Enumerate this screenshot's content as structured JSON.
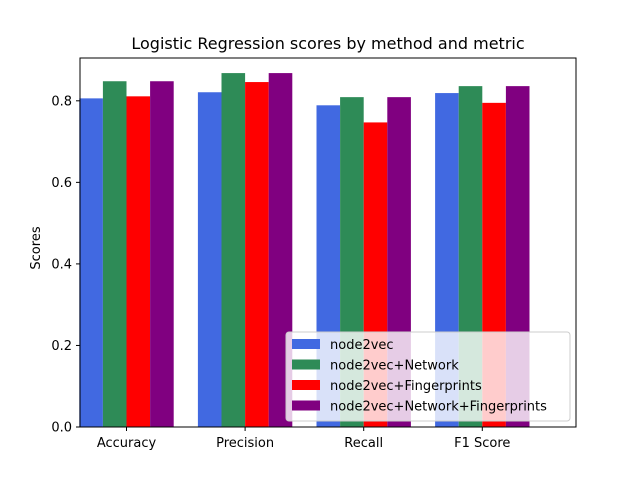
{
  "chart_data": {
    "type": "bar",
    "title": "Logistic Regression scores by method and metric",
    "xlabel": "",
    "ylabel": "Scores",
    "categories": [
      "Accuracy",
      "Precision",
      "Recall",
      "F1 Score"
    ],
    "ylim": [
      0,
      0.905
    ],
    "yticks": [
      0.0,
      0.2,
      0.4,
      0.6,
      0.8
    ],
    "ytick_labels": [
      "0.0",
      "0.2",
      "0.4",
      "0.6",
      "0.8"
    ],
    "grid": false,
    "legend_position": "lower right",
    "series": [
      {
        "name": "node2vec",
        "color": "#4169e1",
        "values": [
          0.806,
          0.821,
          0.789,
          0.819
        ]
      },
      {
        "name": "node2vec+Network",
        "color": "#2e8b57",
        "values": [
          0.848,
          0.868,
          0.809,
          0.836
        ]
      },
      {
        "name": "node2vec+Fingerprints",
        "color": "#ff0000",
        "values": [
          0.811,
          0.846,
          0.747,
          0.795
        ]
      },
      {
        "name": "node2vec+Network+Fingerprints",
        "color": "#800080",
        "values": [
          0.848,
          0.868,
          0.809,
          0.836
        ]
      }
    ]
  }
}
